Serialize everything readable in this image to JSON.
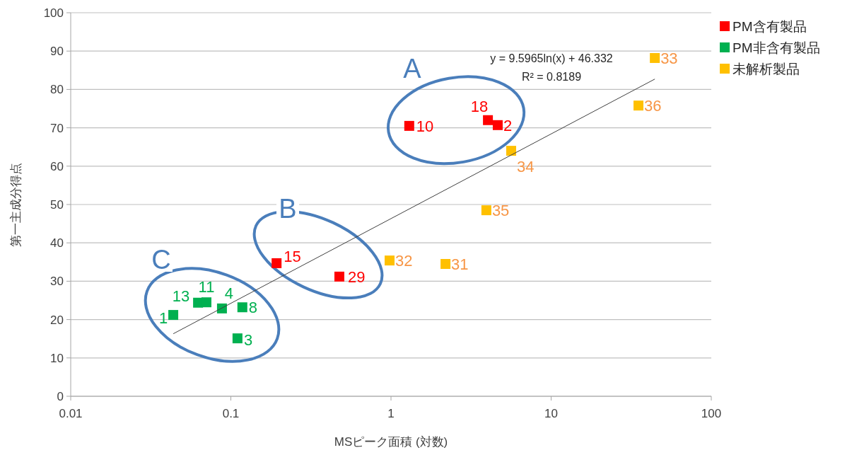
{
  "chart_data": {
    "type": "scatter",
    "xlabel": "MSピーク面積 (対数)",
    "ylabel": "第一主成分得点",
    "log": "x",
    "xlim": [
      0.01,
      100
    ],
    "xticks": [
      0.01,
      0.1,
      1,
      10,
      100
    ],
    "ylim": [
      0,
      100
    ],
    "yticks": [
      0,
      10,
      20,
      30,
      40,
      50,
      60,
      70,
      80,
      90,
      100
    ],
    "grid": "y",
    "legend": "top right",
    "marker": "square",
    "series": [
      {
        "name": "PM含有製品",
        "color": "#ff0000",
        "x": [
          0.193,
          0.476,
          1.3,
          4.03,
          4.64
        ],
        "values": [
          34.7,
          31.2,
          70.5,
          72.0,
          70.7
        ]
      },
      {
        "name": "PM非含有製品",
        "color": "#00b050",
        "x": [
          0.0437,
          0.0624,
          0.0704,
          0.088,
          0.118,
          0.11
        ],
        "values": [
          21.2,
          24.4,
          24.5,
          22.9,
          23.2,
          15.1
        ]
      },
      {
        "name": "未解析製品",
        "color": "#ffc000",
        "x": [
          0.98,
          2.19,
          3.94,
          5.63,
          35.1,
          44.4
        ],
        "values": [
          35.4,
          34.5,
          48.5,
          64.0,
          75.8,
          88.2
        ]
      },
      {
        "type": "line",
        "color": "#404040",
        "marker": "none",
        "x": [
          0.0437,
          44.4
        ],
        "values": [
          16.3,
          82.7
        ]
      }
    ],
    "annotations": [
      {
        "text": "15",
        "x": 0.193,
        "y": 34.7
      },
      {
        "text": "29",
        "x": 0.476,
        "y": 31.2
      },
      {
        "text": "10",
        "x": 1.3,
        "y": 70.5
      },
      {
        "text": "18",
        "x": 4.03,
        "y": 72.0
      },
      {
        "text": "2",
        "x": 4.64,
        "y": 70.7
      },
      {
        "text": "1",
        "x": 0.0437,
        "y": 21.2
      },
      {
        "text": "13",
        "x": 0.0624,
        "y": 24.4
      },
      {
        "text": "11",
        "x": 0.0704,
        "y": 24.5
      },
      {
        "text": "4",
        "x": 0.088,
        "y": 22.9
      },
      {
        "text": "8",
        "x": 0.118,
        "y": 23.2
      },
      {
        "text": "3",
        "x": 0.11,
        "y": 15.1
      },
      {
        "text": "32",
        "x": 0.98,
        "y": 35.4
      },
      {
        "text": "31",
        "x": 2.19,
        "y": 34.5
      },
      {
        "text": "35",
        "x": 3.94,
        "y": 48.5
      },
      {
        "text": "34",
        "x": 5.63,
        "y": 64.0
      },
      {
        "text": "36",
        "x": 35.1,
        "y": 75.8
      },
      {
        "text": "33",
        "x": 44.4,
        "y": 88.2
      },
      "A",
      "B",
      "C",
      "y = 9.5965ln(x) + 46.332",
      "R² = 0.8189"
    ]
  }
}
